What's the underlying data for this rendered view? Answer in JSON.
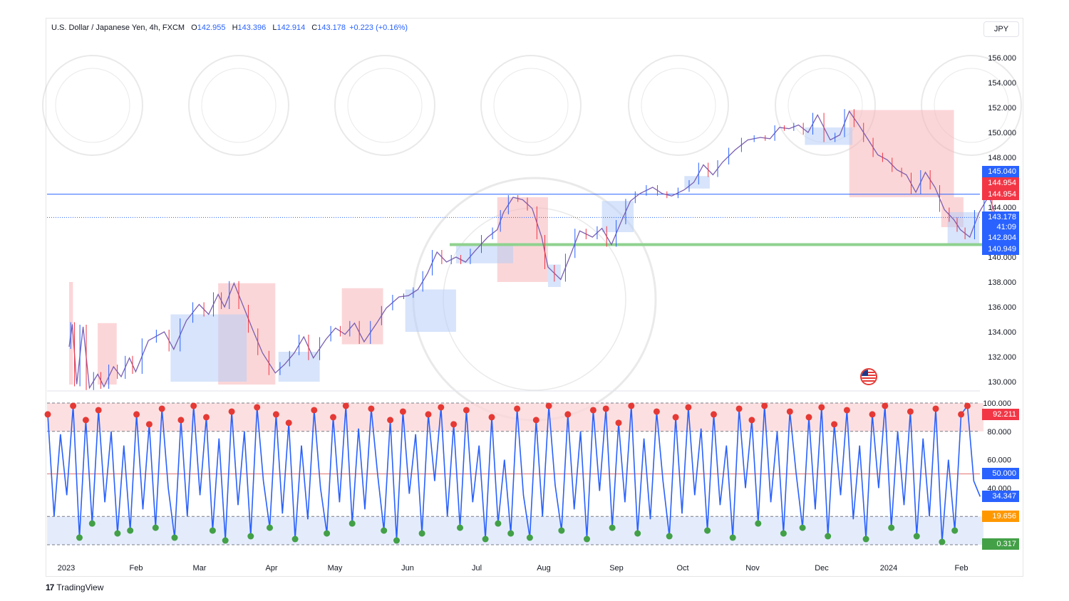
{
  "header": {
    "symbol": "U.S. Dollar / Japanese Yen, 4h, FXCM",
    "open_key": "O",
    "open": "142.955",
    "high_key": "H",
    "high": "143.396",
    "low_key": "L",
    "low": "142.914",
    "close_key": "C",
    "close": "143.178",
    "change": "+0.223 (+0.16%)"
  },
  "currency_button": "JPY",
  "branding": {
    "name": "TradingView",
    "mark": "17"
  },
  "price_tags": {
    "t1": "145.040",
    "t2": "144.954",
    "t3": "144.954",
    "t4": "143.178",
    "t4b": "41:09",
    "t5": "142.804",
    "t6": "140.949"
  },
  "osc_tags": {
    "t1": "92.211",
    "t2": "50.000",
    "t3": "34.347",
    "t4": "19.656",
    "t5": "0.317"
  },
  "colors": {
    "blue_tag": "#2962ff",
    "red_tag": "#f23645",
    "green_tag": "#43a047",
    "orange_tag": "#ff9800",
    "candle_up": "#2962ff",
    "candle_down": "#f23645",
    "support": "#8fd18f"
  },
  "chart_data": [
    {
      "type": "line",
      "title": "U.S. Dollar / Japanese Yen, 4h, FXCM",
      "x_ticks": [
        "2023",
        "Feb",
        "Mar",
        "Apr",
        "May",
        "Jun",
        "Jul",
        "Aug",
        "Sep",
        "Oct",
        "Nov",
        "Dec",
        "2024",
        "Feb"
      ],
      "y_ticks": [
        "156.000",
        "154.000",
        "152.000",
        "150.000",
        "148.000",
        "146.000",
        "144.000",
        "142.000",
        "140.000",
        "138.000",
        "136.000",
        "134.000",
        "132.000",
        "130.000"
      ],
      "ylim": [
        130,
        157
      ],
      "series": [
        {
          "values": [
            [
              0,
              132.8
            ],
            [
              0.05,
              134.6
            ],
            [
              0.12,
              129.8
            ],
            [
              0.22,
              134.4
            ],
            [
              0.32,
              129.5
            ],
            [
              0.45,
              130.6
            ],
            [
              0.55,
              129.6
            ],
            [
              0.7,
              131.2
            ],
            [
              0.82,
              130.4
            ],
            [
              0.95,
              131.9
            ],
            [
              1.05,
              130.8
            ],
            [
              1.25,
              133.3
            ],
            [
              1.5,
              134.0
            ],
            [
              1.65,
              132.6
            ],
            [
              1.85,
              134.9
            ],
            [
              2.05,
              136.2
            ],
            [
              2.2,
              135.4
            ],
            [
              2.35,
              137.0
            ],
            [
              2.45,
              136.0
            ],
            [
              2.6,
              137.9
            ],
            [
              2.75,
              136.0
            ],
            [
              2.9,
              134.1
            ],
            [
              3.05,
              132.3
            ],
            [
              3.25,
              130.7
            ],
            [
              3.4,
              131.4
            ],
            [
              3.55,
              132.3
            ],
            [
              3.7,
              133.6
            ],
            [
              3.85,
              131.9
            ],
            [
              4.05,
              133.4
            ],
            [
              4.2,
              134.3
            ],
            [
              4.35,
              133.8
            ],
            [
              4.5,
              134.7
            ],
            [
              4.65,
              133.2
            ],
            [
              4.85,
              134.7
            ],
            [
              5.0,
              135.9
            ],
            [
              5.2,
              136.8
            ],
            [
              5.35,
              136.9
            ],
            [
              5.5,
              137.4
            ],
            [
              5.65,
              138.7
            ],
            [
              5.8,
              140.4
            ],
            [
              5.95,
              139.6
            ],
            [
              6.1,
              140.0
            ],
            [
              6.25,
              139.6
            ],
            [
              6.4,
              140.5
            ],
            [
              6.6,
              141.6
            ],
            [
              6.75,
              142.2
            ],
            [
              6.85,
              143.6
            ],
            [
              7.0,
              144.8
            ],
            [
              7.15,
              144.6
            ],
            [
              7.3,
              143.9
            ],
            [
              7.45,
              141.6
            ],
            [
              7.55,
              139.2
            ],
            [
              7.75,
              138.2
            ],
            [
              7.9,
              140.1
            ],
            [
              8.05,
              142.1
            ],
            [
              8.25,
              141.6
            ],
            [
              8.4,
              142.3
            ],
            [
              8.55,
              141.0
            ],
            [
              8.7,
              142.8
            ],
            [
              8.85,
              144.5
            ],
            [
              9.0,
              145.1
            ],
            [
              9.2,
              145.6
            ],
            [
              9.35,
              145.1
            ],
            [
              9.5,
              144.9
            ],
            [
              9.7,
              145.4
            ],
            [
              9.85,
              146.0
            ],
            [
              10.0,
              147.4
            ],
            [
              10.15,
              146.6
            ],
            [
              10.3,
              147.6
            ],
            [
              10.5,
              148.6
            ],
            [
              10.7,
              149.4
            ],
            [
              10.9,
              149.6
            ],
            [
              11.05,
              149.5
            ],
            [
              11.2,
              150.4
            ],
            [
              11.35,
              150.3
            ],
            [
              11.5,
              150.6
            ],
            [
              11.65,
              150.0
            ],
            [
              11.8,
              151.4
            ],
            [
              12.0,
              149.4
            ],
            [
              12.15,
              149.8
            ],
            [
              12.3,
              151.7
            ],
            [
              12.45,
              150.6
            ],
            [
              12.6,
              149.4
            ],
            [
              12.75,
              148.2
            ],
            [
              12.9,
              147.8
            ],
            [
              13.05,
              147.0
            ],
            [
              13.2,
              146.6
            ],
            [
              13.35,
              145.2
            ],
            [
              13.5,
              146.8
            ],
            [
              13.65,
              145.6
            ],
            [
              13.8,
              143.8
            ],
            [
              13.95,
              143.0
            ],
            [
              14.05,
              142.2
            ],
            [
              14.2,
              141.6
            ],
            [
              14.35,
              143.6
            ],
            [
              14.5,
              144.9
            ],
            [
              14.6,
              143.5
            ],
            [
              14.7,
              143.2
            ]
          ]
        }
      ]
    },
    {
      "type": "line",
      "title": "",
      "y_ticks": [
        "100.000",
        "80.000",
        "60.000",
        "40.000"
      ],
      "ylim": [
        0,
        100
      ],
      "series": [
        {
          "values": [
            [
              0,
              92
            ],
            [
              0.1,
              20
            ],
            [
              0.2,
              78
            ],
            [
              0.3,
              35
            ],
            [
              0.4,
              98
            ],
            [
              0.5,
              5
            ],
            [
              0.6,
              88
            ],
            [
              0.7,
              15
            ],
            [
              0.8,
              95
            ],
            [
              0.9,
              30
            ],
            [
              1.0,
              80
            ],
            [
              1.1,
              8
            ],
            [
              1.2,
              70
            ],
            [
              1.3,
              10
            ],
            [
              1.4,
              92
            ],
            [
              1.5,
              25
            ],
            [
              1.6,
              85
            ],
            [
              1.7,
              12
            ],
            [
              1.8,
              96
            ],
            [
              1.9,
              40
            ],
            [
              2.0,
              5
            ],
            [
              2.1,
              88
            ],
            [
              2.2,
              20
            ],
            [
              2.3,
              98
            ],
            [
              2.4,
              35
            ],
            [
              2.5,
              90
            ],
            [
              2.6,
              10
            ],
            [
              2.7,
              75
            ],
            [
              2.8,
              3
            ],
            [
              2.9,
              94
            ],
            [
              3.0,
              28
            ],
            [
              3.1,
              80
            ],
            [
              3.2,
              6
            ],
            [
              3.3,
              97
            ],
            [
              3.4,
              45
            ],
            [
              3.5,
              12
            ],
            [
              3.6,
              92
            ],
            [
              3.7,
              22
            ],
            [
              3.8,
              86
            ],
            [
              3.9,
              4
            ],
            [
              4.0,
              70
            ],
            [
              4.1,
              18
            ],
            [
              4.2,
              95
            ],
            [
              4.3,
              40
            ],
            [
              4.4,
              8
            ],
            [
              4.5,
              90
            ],
            [
              4.6,
              30
            ],
            [
              4.7,
              98
            ],
            [
              4.8,
              15
            ],
            [
              4.9,
              82
            ],
            [
              5.0,
              25
            ],
            [
              5.1,
              96
            ],
            [
              5.2,
              50
            ],
            [
              5.3,
              10
            ],
            [
              5.4,
              88
            ],
            [
              5.5,
              3
            ],
            [
              5.6,
              94
            ],
            [
              5.7,
              36
            ],
            [
              5.8,
              78
            ],
            [
              5.9,
              8
            ],
            [
              6.0,
              92
            ],
            [
              6.1,
              45
            ],
            [
              6.2,
              97
            ],
            [
              6.3,
              20
            ],
            [
              6.4,
              85
            ],
            [
              6.5,
              12
            ],
            [
              6.6,
              95
            ],
            [
              6.7,
              30
            ],
            [
              6.8,
              70
            ],
            [
              6.9,
              4
            ],
            [
              7.0,
              90
            ],
            [
              7.1,
              15
            ],
            [
              7.2,
              60
            ],
            [
              7.3,
              8
            ],
            [
              7.4,
              96
            ],
            [
              7.5,
              35
            ],
            [
              7.6,
              5
            ],
            [
              7.7,
              88
            ],
            [
              7.8,
              20
            ],
            [
              7.9,
              98
            ],
            [
              8.0,
              42
            ],
            [
              8.1,
              10
            ],
            [
              8.2,
              92
            ],
            [
              8.3,
              25
            ],
            [
              8.4,
              80
            ],
            [
              8.5,
              4
            ],
            [
              8.6,
              95
            ],
            [
              8.7,
              38
            ],
            [
              8.8,
              96
            ],
            [
              8.9,
              12
            ],
            [
              9.0,
              86
            ],
            [
              9.1,
              30
            ],
            [
              9.2,
              98
            ],
            [
              9.3,
              8
            ],
            [
              9.4,
              75
            ],
            [
              9.5,
              18
            ],
            [
              9.6,
              94
            ],
            [
              9.7,
              45
            ],
            [
              9.8,
              6
            ],
            [
              9.9,
              90
            ],
            [
              10.0,
              22
            ],
            [
              10.1,
              97
            ],
            [
              10.2,
              35
            ],
            [
              10.3,
              82
            ],
            [
              10.4,
              10
            ],
            [
              10.5,
              92
            ],
            [
              10.6,
              28
            ],
            [
              10.7,
              70
            ],
            [
              10.8,
              5
            ],
            [
              10.9,
              96
            ],
            [
              11.0,
              40
            ],
            [
              11.1,
              88
            ],
            [
              11.2,
              15
            ],
            [
              11.3,
              98
            ],
            [
              11.4,
              30
            ],
            [
              11.5,
              80
            ],
            [
              11.6,
              8
            ],
            [
              11.7,
              94
            ],
            [
              11.8,
              50
            ],
            [
              11.9,
              12
            ],
            [
              12.0,
              90
            ],
            [
              12.1,
              25
            ],
            [
              12.2,
              97
            ],
            [
              12.3,
              6
            ],
            [
              12.4,
              85
            ],
            [
              12.5,
              35
            ],
            [
              12.6,
              95
            ],
            [
              12.7,
              18
            ],
            [
              12.8,
              70
            ],
            [
              12.9,
              4
            ],
            [
              13.0,
              92
            ],
            [
              13.1,
              40
            ],
            [
              13.2,
              98
            ],
            [
              13.3,
              12
            ],
            [
              13.4,
              80
            ],
            [
              13.5,
              28
            ],
            [
              13.6,
              94
            ],
            [
              13.7,
              6
            ],
            [
              13.8,
              75
            ],
            [
              13.9,
              20
            ],
            [
              14.0,
              96
            ],
            [
              14.1,
              2
            ],
            [
              14.2,
              60
            ],
            [
              14.3,
              10
            ],
            [
              14.4,
              92
            ],
            [
              14.5,
              98
            ],
            [
              14.6,
              45
            ],
            [
              14.7,
              34
            ]
          ]
        }
      ]
    }
  ]
}
